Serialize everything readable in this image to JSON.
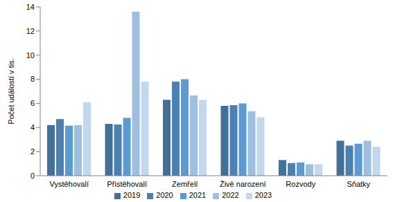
{
  "chart_data": {
    "type": "bar",
    "y_label": "Počet událostí v tis.",
    "categories": [
      "Vystěhovalí",
      "Přistěhovalí",
      "Zemřelí",
      "Živě narození",
      "Rozvody",
      "Sňatky"
    ],
    "series": [
      {
        "name": "2019",
        "color": "#41709b",
        "values": [
          4.2,
          4.3,
          6.3,
          5.8,
          1.3,
          2.9
        ]
      },
      {
        "name": "2020",
        "color": "#4b80b3",
        "values": [
          4.7,
          4.25,
          7.8,
          5.85,
          1.05,
          2.5
        ]
      },
      {
        "name": "2021",
        "color": "#5b9bd5",
        "values": [
          4.15,
          4.8,
          8.0,
          6.0,
          1.1,
          2.65
        ]
      },
      {
        "name": "2022",
        "color": "#9dbfe2",
        "values": [
          4.2,
          13.6,
          6.65,
          5.35,
          0.95,
          2.9
        ]
      },
      {
        "name": "2023",
        "color": "#c3d8ee",
        "values": [
          6.1,
          7.8,
          6.3,
          4.85,
          0.95,
          2.4
        ]
      }
    ],
    "ylim": [
      0,
      14
    ],
    "yticks": [
      0,
      2,
      4,
      6,
      8,
      10,
      12,
      14
    ],
    "grid": false,
    "legend": "bottom"
  }
}
